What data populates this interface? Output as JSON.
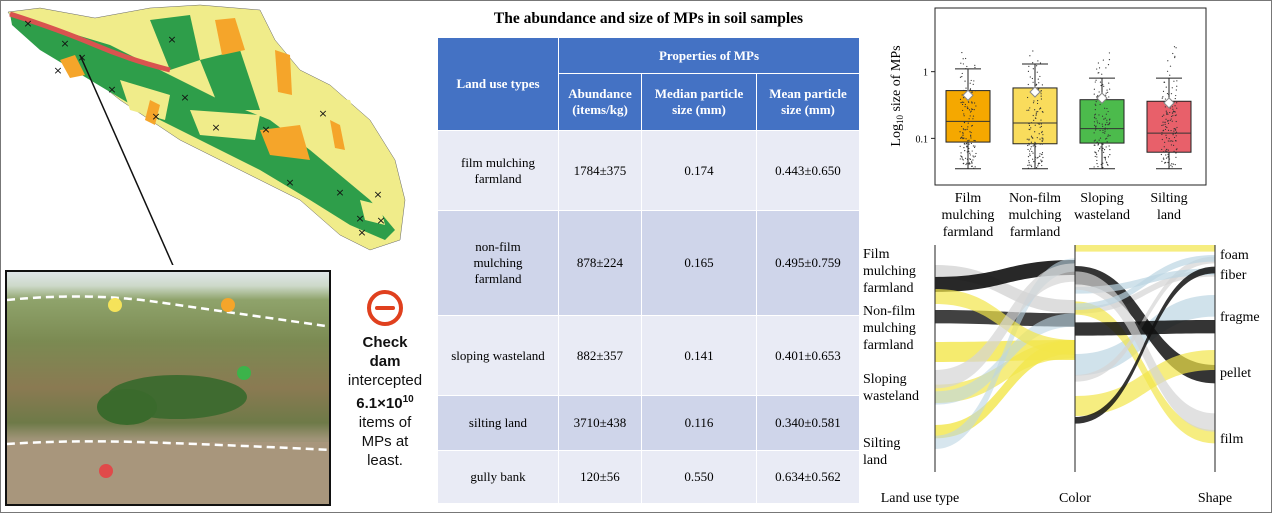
{
  "callout": {
    "icon": "minus-circle-icon",
    "line1": "Check",
    "line2": "dam",
    "line3": "intercepted",
    "value": "6.1×10",
    "exponent": "10",
    "line4": "items of",
    "line5": "MPs at",
    "line6": "least.",
    "color": "#e0401e"
  },
  "table": {
    "title": "The abundance and size of MPs in soil samples",
    "header_group": "Properties of MPs",
    "col0": "Land use types",
    "cols": [
      "Abundance (items/kg)",
      "Median particle size (mm)",
      "Mean particle size (mm)"
    ],
    "rows": [
      {
        "type": "film mulching farmland",
        "abundance": "1784±375",
        "median": "0.174",
        "mean": "0.443±0.650"
      },
      {
        "type": "non-film mulching farmland",
        "abundance": "878±224",
        "median": "0.165",
        "mean": "0.495±0.759"
      },
      {
        "type": "sloping wasteland",
        "abundance": "882±357",
        "median": "0.141",
        "mean": "0.401±0.653"
      },
      {
        "type": "silting land",
        "abundance": "3710±438",
        "median": "0.116",
        "mean": "0.340±0.581"
      },
      {
        "type": "gully bank",
        "abundance": "120±56",
        "median": "0.550",
        "mean": "0.634±0.562"
      }
    ]
  },
  "chart_data": [
    {
      "type": "box",
      "ylabel": "Log10 size of MPs",
      "ylabel_base": "Log",
      "ylabel_sub": "10",
      "ylabel_rest": " size of MPs",
      "yscale": "log",
      "ylim": [
        0.02,
        9
      ],
      "yticks": [
        "0.1",
        "1"
      ],
      "categories": [
        "Film mulching farmland",
        "Non-film mulching farmland",
        "Sloping wasteland",
        "Silting land"
      ],
      "category_lines": [
        [
          "Film",
          "mulching",
          "farmland"
        ],
        [
          "Non-film",
          "mulching",
          "farmland"
        ],
        [
          "Sloping",
          "wasteland"
        ],
        [
          "Silting",
          "land"
        ]
      ],
      "colors": [
        "#f5a800",
        "#f9dc5c",
        "#4cbb4c",
        "#e8606a"
      ],
      "q1": [
        0.088,
        0.083,
        0.085,
        0.062
      ],
      "median": [
        0.18,
        0.17,
        0.14,
        0.12
      ],
      "q3": [
        0.52,
        0.57,
        0.38,
        0.36
      ],
      "mean": [
        0.443,
        0.495,
        0.401,
        0.34
      ],
      "whisker_low": [
        0.035,
        0.035,
        0.035,
        0.035
      ],
      "whisker_high": [
        1.1,
        1.3,
        0.8,
        0.8
      ]
    },
    {
      "type": "parallel_sets",
      "axes": [
        "Land use type",
        "Color",
        "Shape"
      ],
      "land_use": [
        "Film mulching farmland",
        "Non-film mulching farmland",
        "Sloping wasteland",
        "Silting land"
      ],
      "land_use_lines": [
        [
          "Film",
          "mulching",
          "farmland"
        ],
        [
          "Non-film",
          "mulching",
          "farmland"
        ],
        [
          "Sloping",
          "wasteland"
        ],
        [
          "Silting",
          "land"
        ]
      ],
      "shapes": [
        "foam",
        "fiber",
        "fragment",
        "pellet",
        "film"
      ]
    }
  ]
}
